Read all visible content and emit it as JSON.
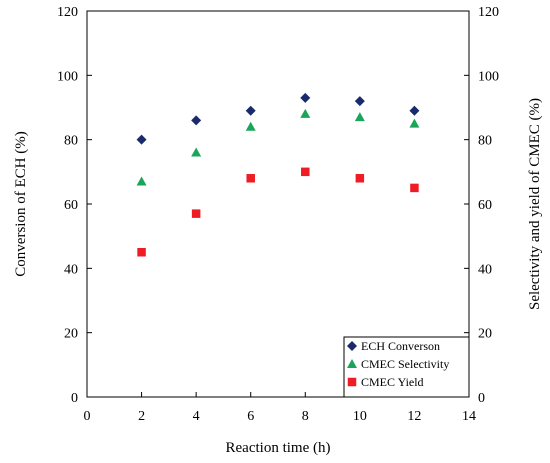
{
  "chart_data": {
    "type": "scatter",
    "title": "",
    "xlabel": "Reaction time (h)",
    "ylabel_left": "Conversion of ECH (%)",
    "ylabel_right": "Selectivity and yield of CMEC (%)",
    "xlim": [
      0,
      14
    ],
    "ylim_left": [
      0,
      120
    ],
    "ylim_right": [
      0,
      120
    ],
    "xticks": [
      0,
      2,
      4,
      6,
      8,
      10,
      12,
      14
    ],
    "yticks": [
      0,
      20,
      40,
      60,
      80,
      100,
      120
    ],
    "grid": false,
    "legend_position": "bottom-right",
    "series": [
      {
        "name": "ECH Converson",
        "marker": "diamond",
        "color": "#1a2a6c",
        "axis": "left",
        "x": [
          2,
          4,
          6,
          8,
          10,
          12
        ],
        "y": [
          80,
          86,
          89,
          93,
          92,
          89
        ]
      },
      {
        "name": "CMEC Selectivity",
        "marker": "triangle",
        "color": "#1aa55a",
        "axis": "right",
        "x": [
          2,
          4,
          6,
          8,
          10,
          12
        ],
        "y": [
          67,
          76,
          84,
          88,
          87,
          85
        ]
      },
      {
        "name": "CMEC Yield",
        "marker": "square",
        "color": "#ee1c25",
        "axis": "right",
        "x": [
          2,
          4,
          6,
          8,
          10,
          12
        ],
        "y": [
          45,
          57,
          68,
          70,
          68,
          65
        ]
      }
    ]
  }
}
